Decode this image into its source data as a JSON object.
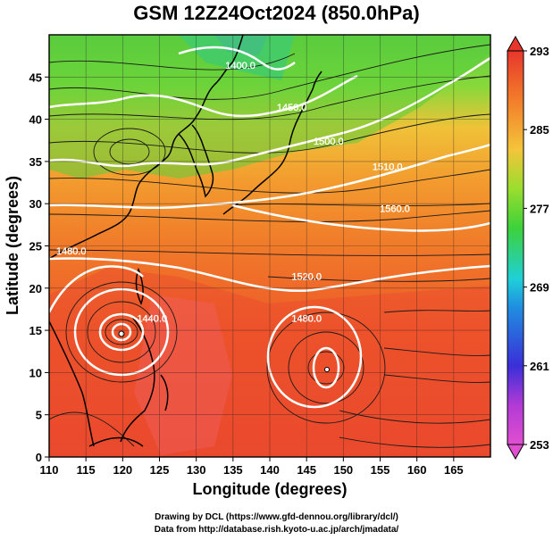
{
  "title": "GSM 12Z24Oct2024 (850.0hPa)",
  "map_data": {
    "lon_range": [
      110,
      170
    ],
    "lat_range": [
      0,
      50
    ],
    "x_ticks": [
      "110",
      "115",
      "120",
      "125",
      "130",
      "135",
      "140",
      "145",
      "150",
      "155",
      "160",
      "165"
    ],
    "y_ticks": [
      "0",
      "5",
      "10",
      "15",
      "20",
      "25",
      "30",
      "35",
      "40",
      "45"
    ],
    "xlabel": "Longitude (degrees)",
    "ylabel": "Latitude (degrees)",
    "colorbar_ticks": [
      "253",
      "261",
      "269",
      "277",
      "285",
      "293"
    ],
    "colorbar_range": [
      253,
      293
    ],
    "contour_labels": [
      {
        "text": "1400.0",
        "lon": 136,
        "lat": 46
      },
      {
        "text": "1450.0",
        "lon": 143,
        "lat": 41
      },
      {
        "text": "1500.0",
        "lon": 148,
        "lat": 37
      },
      {
        "text": "1510.0",
        "lon": 156,
        "lat": 34
      },
      {
        "text": "1560.0",
        "lon": 157,
        "lat": 29
      },
      {
        "text": "1520.0",
        "lon": 145,
        "lat": 21
      },
      {
        "text": "1480.0",
        "lon": 145,
        "lat": 16
      },
      {
        "text": "1480.0",
        "lon": 113,
        "lat": 24
      },
      {
        "text": "1440.0",
        "lon": 124,
        "lat": 16
      }
    ],
    "colors": {
      "hot": "#e8362c",
      "warm": "#f2a23a",
      "mid": "#3fcf35",
      "cool": "#1fbfd8",
      "cold": "#2a3fd1",
      "contour": "#ffffff",
      "coast": "#000000"
    }
  },
  "credits": {
    "line1": "Drawing by DCL (https://www.gfd-dennou.org/library/dcl/)",
    "line2": "Data from http://database.rish.kyoto-u.ac.jp/arch/jmadata/"
  }
}
